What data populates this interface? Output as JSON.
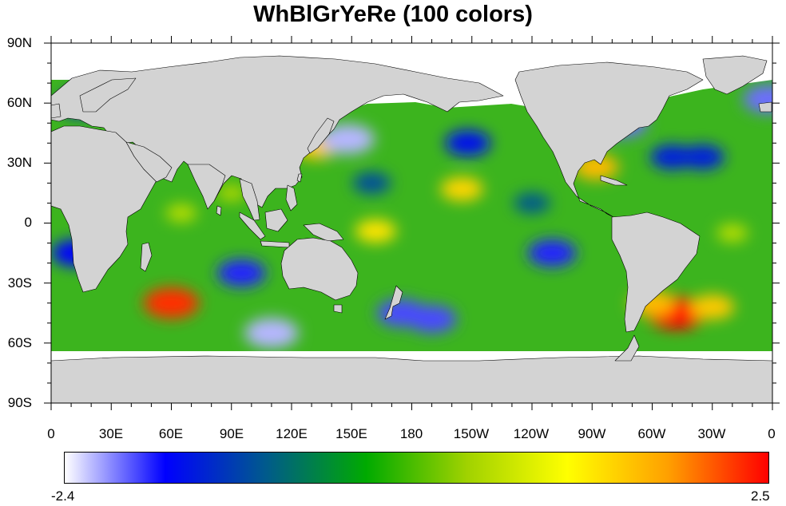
{
  "title": "WhBlGrYeRe (100 colors)",
  "y_axis": {
    "labels": [
      "90N",
      "60N",
      "30N",
      "0",
      "30S",
      "60S",
      "90S"
    ],
    "lat_values": [
      90,
      60,
      30,
      0,
      -30,
      -60,
      -90
    ]
  },
  "x_axis": {
    "labels": [
      "0",
      "30E",
      "60E",
      "90E",
      "120E",
      "150E",
      "180",
      "150W",
      "120W",
      "90W",
      "60W",
      "30W",
      "0"
    ],
    "lon_values": [
      0,
      30,
      60,
      90,
      120,
      150,
      180,
      210,
      240,
      270,
      300,
      330,
      360
    ]
  },
  "colorbar": {
    "colormap": "WhBlGrYeRe",
    "min_label": "-2.4",
    "max_label": "2.5",
    "stops": [
      "#ffffff",
      "#0000ff",
      "#005a8c",
      "#00aa00",
      "#a0d200",
      "#ffff00",
      "#ffa000",
      "#ff0000"
    ]
  },
  "colors": {
    "land": "#d3d3d3",
    "no_data": "#ffffff",
    "background": "#ffffff"
  },
  "chart_data": {
    "type": "heatmap",
    "title": "WhBlGrYeRe (100 colors)",
    "x_ticks": [
      "0",
      "30E",
      "60E",
      "90E",
      "120E",
      "150E",
      "180",
      "150W",
      "120W",
      "90W",
      "60W",
      "30W",
      "0"
    ],
    "y_ticks": [
      "90N",
      "60N",
      "30N",
      "0",
      "30S",
      "60S",
      "90S"
    ],
    "xlim": [
      0,
      360
    ],
    "ylim": [
      -90,
      90
    ],
    "value_range": [
      -2.4,
      2.5
    ],
    "anomalies": [
      {
        "lon": 60,
        "lat": -40,
        "value": 2.3
      },
      {
        "lon": 312,
        "lat": -45,
        "value": 2.5
      },
      {
        "lon": 300,
        "lat": -40,
        "value": 1.6
      },
      {
        "lon": 330,
        "lat": -42,
        "value": 1.5
      },
      {
        "lon": 205,
        "lat": 17,
        "value": 1.4
      },
      {
        "lon": 162,
        "lat": -4,
        "value": 1.3
      },
      {
        "lon": 132,
        "lat": 38,
        "value": 1.5
      },
      {
        "lon": 272,
        "lat": 28,
        "value": 1.6
      },
      {
        "lon": 148,
        "lat": 42,
        "value": -2.2
      },
      {
        "lon": 110,
        "lat": -55,
        "value": -2.2
      },
      {
        "lon": 95,
        "lat": -25,
        "value": -1.8
      },
      {
        "lon": 175,
        "lat": -45,
        "value": -1.9
      },
      {
        "lon": 190,
        "lat": -48,
        "value": -1.9
      },
      {
        "lon": 208,
        "lat": 40,
        "value": -1.6
      },
      {
        "lon": 250,
        "lat": -15,
        "value": -1.8
      },
      {
        "lon": 285,
        "lat": 50,
        "value": -2.0
      },
      {
        "lon": 310,
        "lat": 33,
        "value": -1.5
      },
      {
        "lon": 325,
        "lat": 33,
        "value": -1.5
      },
      {
        "lon": 15,
        "lat": 60,
        "value": -1.6
      },
      {
        "lon": 358,
        "lat": 62,
        "value": -2.0
      },
      {
        "lon": 12,
        "lat": -15,
        "value": -1.7
      },
      {
        "lon": 160,
        "lat": 20,
        "value": -1.1
      },
      {
        "lon": 240,
        "lat": 10,
        "value": -1.0
      },
      {
        "lon": 65,
        "lat": 5,
        "value": 0.6
      },
      {
        "lon": 340,
        "lat": -5,
        "value": 0.6
      },
      {
        "lon": 90,
        "lat": 15,
        "value": 0.5
      }
    ]
  }
}
